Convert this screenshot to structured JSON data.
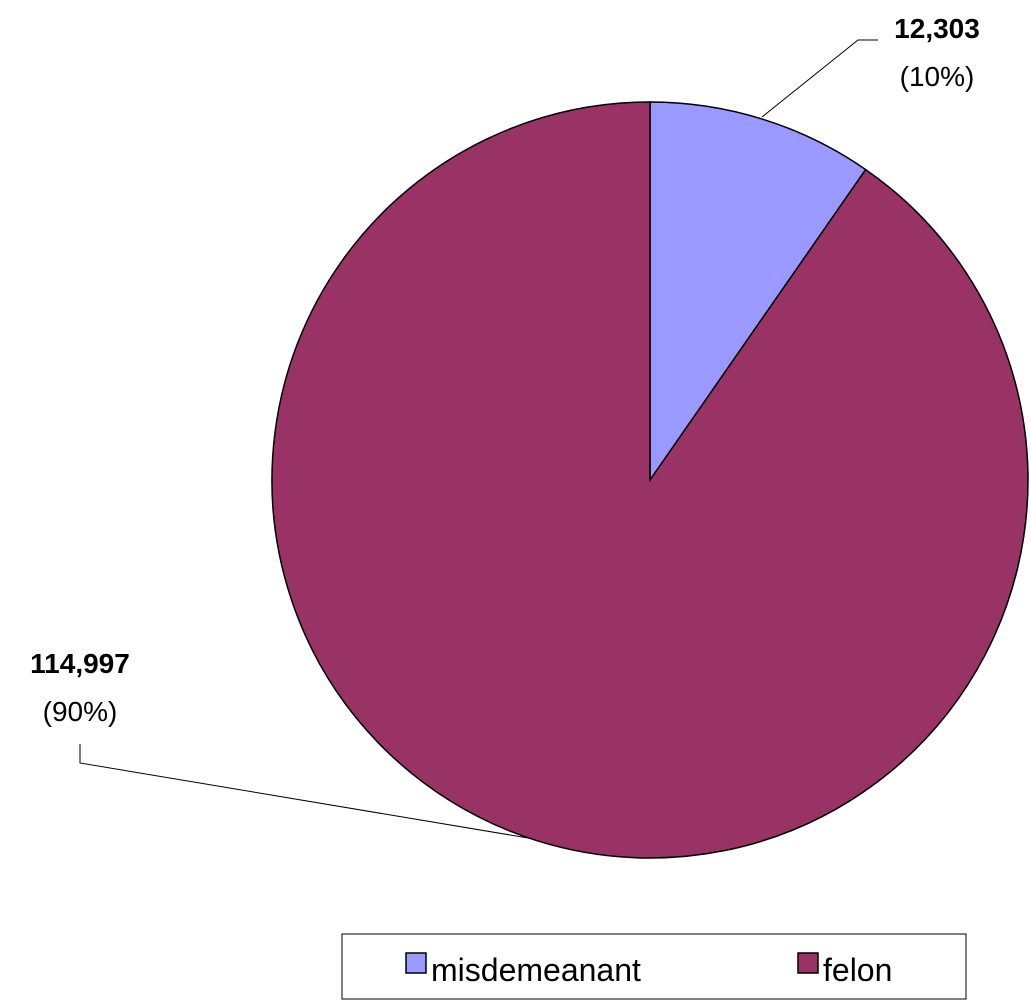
{
  "chart_data": {
    "type": "pie",
    "categories": [
      "misdemeanant",
      "felon"
    ],
    "values": [
      12303,
      114997
    ],
    "value_labels": [
      "12,303",
      "114,997"
    ],
    "percent_labels": [
      "(10%)",
      "(90%)"
    ],
    "colors": [
      "#9999ff",
      "#993366"
    ],
    "start_angle_deg": 0,
    "direction": "clockwise",
    "legend": {
      "placement": "bottom",
      "entries": [
        "misdemeanant",
        "felon"
      ]
    }
  }
}
